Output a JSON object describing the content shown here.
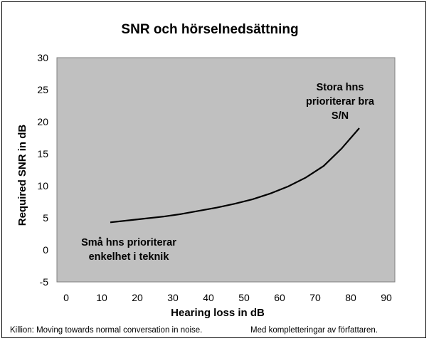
{
  "chart_data": {
    "type": "line",
    "title": "SNR och hörselnedsättning",
    "xlabel": "Hearing loss in dB",
    "ylabel": "Required SNR in dB",
    "xlim": [
      0,
      95
    ],
    "ylim": [
      -5,
      30
    ],
    "x_ticks": [
      0,
      10,
      20,
      30,
      40,
      50,
      60,
      70,
      80,
      90
    ],
    "y_ticks": [
      -5,
      0,
      5,
      10,
      15,
      20,
      25,
      30
    ],
    "grid": false,
    "plot_background": "#c0c0c0",
    "line_color": "#000000",
    "series": [
      {
        "x": [
          15,
          20,
          25,
          30,
          35,
          40,
          45,
          50,
          55,
          60,
          65,
          70,
          75,
          80,
          85
        ],
        "values": [
          4.3,
          4.6,
          4.9,
          5.2,
          5.6,
          6.1,
          6.6,
          7.2,
          7.9,
          8.8,
          9.9,
          11.3,
          13.1,
          15.8,
          19.0
        ]
      }
    ],
    "annotations": [
      {
        "lines": [
          "Stora hns",
          "prioriterar bra",
          "S/N"
        ]
      },
      {
        "lines": [
          "Små hns prioriterar",
          "enkelhet i teknik"
        ]
      }
    ]
  },
  "footer": {
    "left": "Killion: Moving towards normal conversation in noise.",
    "right": "Med kompletteringar av författaren."
  }
}
